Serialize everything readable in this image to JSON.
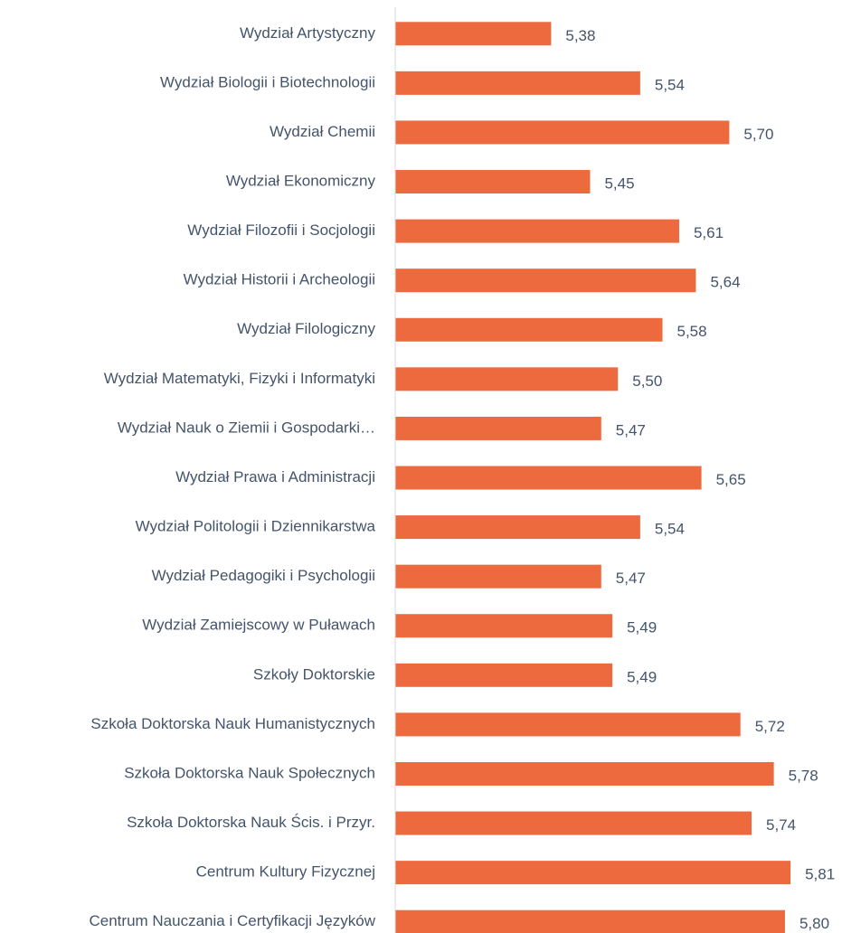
{
  "chart_data": {
    "type": "bar",
    "orientation": "horizontal",
    "categories": [
      "Wydział Artystyczny",
      "Wydział Biologii i Biotechnologii",
      "Wydział Chemii",
      "Wydział Ekonomiczny",
      "Wydział Filozofii i Socjologii",
      "Wydział Historii i Archeologii",
      "Wydział Filologiczny",
      "Wydział Matematyki, Fizyki i Informatyki",
      "Wydział Nauk o Ziemii i Gospodarki…",
      "Wydział Prawa i Administracji",
      "Wydział Politologii i Dziennikarstwa",
      "Wydział Pedagogiki i Psychologii",
      "Wydział Zamiejscowy w Puławach",
      "Szkoły Doktorskie",
      "Szkoła Doktorska Nauk Humanistycznych",
      "Szkoła Doktorska Nauk Społecznych",
      "Szkoła Doktorska Nauk Ścis. i Przyr.",
      "Centrum Kultury Fizycznej",
      "Centrum Nauczania i Certyfikacji Języków"
    ],
    "values": [
      5.38,
      5.54,
      5.7,
      5.45,
      5.61,
      5.64,
      5.58,
      5.5,
      5.47,
      5.65,
      5.54,
      5.47,
      5.49,
      5.49,
      5.72,
      5.78,
      5.74,
      5.81,
      5.8
    ],
    "value_labels": [
      "5,38",
      "5,54",
      "5,70",
      "5,45",
      "5,61",
      "5,64",
      "5,58",
      "5,50",
      "5,47",
      "5,65",
      "5,54",
      "5,47",
      "5,49",
      "5,49",
      "5,72",
      "5,78",
      "5,74",
      "5,81",
      "5,80"
    ],
    "color": "#ed6a3f",
    "xlim": [
      5.1,
      5.9
    ],
    "grid": false
  }
}
